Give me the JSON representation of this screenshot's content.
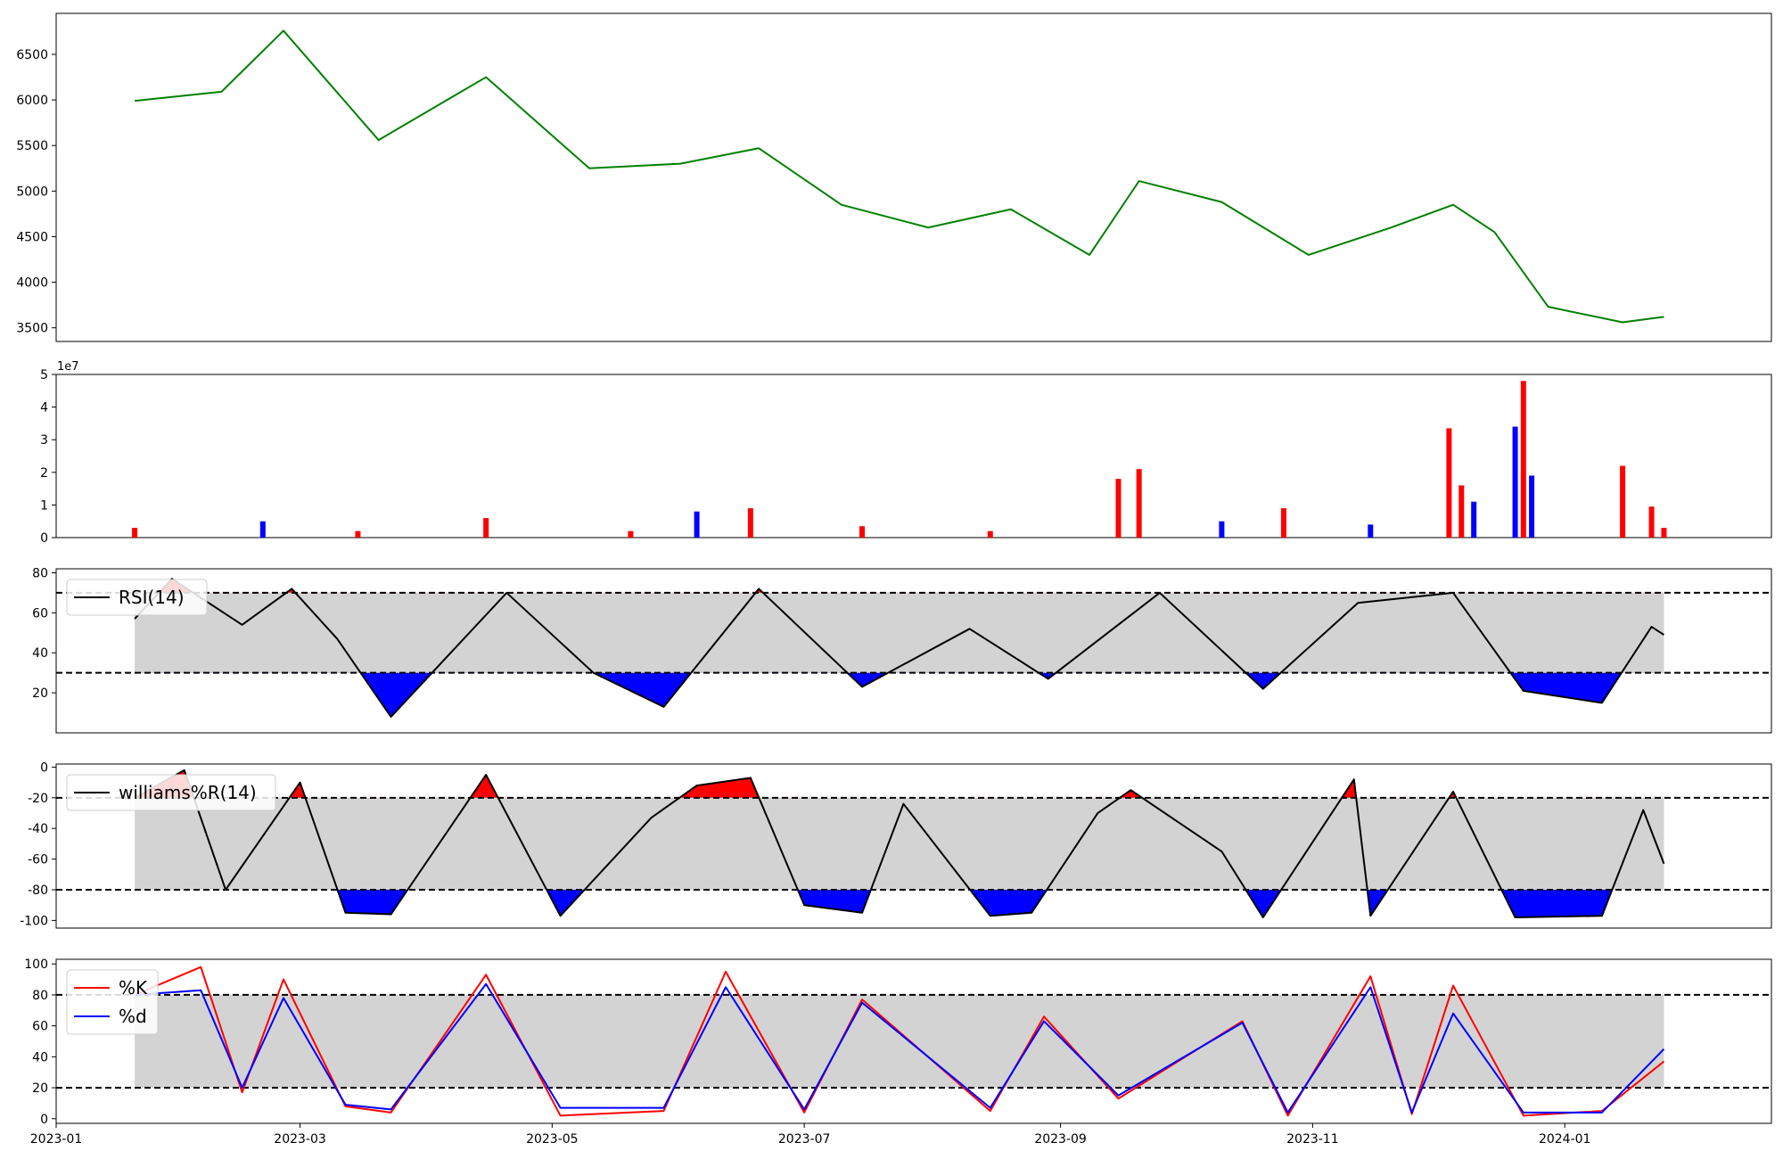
{
  "figure": {
    "x_ticks": [
      "2023-01",
      "2023-03",
      "2023-05",
      "2023-07",
      "2023-09",
      "2023-11",
      "2024-01"
    ],
    "x_tick_dates": [
      "2023-01-01",
      "2023-03-01",
      "2023-05-01",
      "2023-07-01",
      "2023-09-01",
      "2023-11-01",
      "2024-01-01"
    ],
    "x_range": [
      "2023-01-01",
      "2024-02-20"
    ],
    "colors": {
      "price": "#008000",
      "up": "#ff0000",
      "down": "#0000ff",
      "band": "#d3d3d3",
      "line": "#000000",
      "k": "#ff0000",
      "d": "#0000ff"
    }
  },
  "chart_data": [
    {
      "type": "line",
      "panel": "price",
      "title": "",
      "ylim": [
        3350,
        6950
      ],
      "yticks": [
        "3500",
        "4000",
        "4500",
        "5000",
        "5500",
        "6000",
        "6500"
      ],
      "x": [
        "2023-01-20",
        "2023-02-10",
        "2023-02-25",
        "2023-03-20",
        "2023-04-15",
        "2023-05-10",
        "2023-06-01",
        "2023-06-20",
        "2023-07-10",
        "2023-07-31",
        "2023-08-20",
        "2023-09-08",
        "2023-09-20",
        "2023-10-10",
        "2023-10-31",
        "2023-11-20",
        "2023-12-05",
        "2023-12-15",
        "2023-12-28",
        "2024-01-15",
        "2024-01-25"
      ],
      "series": [
        {
          "values": [
            5990,
            6090,
            6760,
            5560,
            6250,
            5250,
            5300,
            5470,
            4850,
            4600,
            4800,
            4300,
            5110,
            4880,
            4300,
            4600,
            4850,
            4550,
            3730,
            3560,
            3620
          ]
        }
      ]
    },
    {
      "type": "bar",
      "panel": "volume",
      "offset_label": "1e7",
      "ylim": [
        0,
        5
      ],
      "yticks": [
        "0",
        "1",
        "2",
        "3",
        "4",
        "5"
      ],
      "x": [
        "2023-01-20",
        "2023-02-20",
        "2023-03-15",
        "2023-04-15",
        "2023-05-20",
        "2023-06-05",
        "2023-06-18",
        "2023-07-15",
        "2023-08-15",
        "2023-09-15",
        "2023-09-20",
        "2023-10-10",
        "2023-10-25",
        "2023-11-15",
        "2023-12-04",
        "2023-12-07",
        "2023-12-10",
        "2023-12-20",
        "2023-12-22",
        "2023-12-24",
        "2024-01-15",
        "2024-01-22",
        "2024-01-25"
      ],
      "values": [
        0.3,
        0.5,
        0.2,
        0.6,
        0.2,
        0.8,
        0.9,
        0.35,
        0.2,
        1.8,
        2.1,
        0.5,
        0.9,
        0.4,
        3.35,
        1.6,
        1.1,
        3.4,
        4.8,
        1.9,
        2.2,
        0.95,
        0.3
      ],
      "up": [
        true,
        false,
        true,
        true,
        true,
        false,
        true,
        true,
        true,
        true,
        true,
        false,
        true,
        false,
        true,
        true,
        false,
        false,
        true,
        false,
        true,
        true,
        true
      ]
    },
    {
      "type": "line",
      "panel": "rsi",
      "legend": [
        "RSI(14)"
      ],
      "ylim": [
        0,
        82
      ],
      "yticks": [
        "20",
        "40",
        "60",
        "80"
      ],
      "thresholds": [
        30,
        70
      ],
      "x": [
        "2023-01-20",
        "2023-01-29",
        "2023-02-15",
        "2023-02-27",
        "2023-03-10",
        "2023-03-23",
        "2023-04-20",
        "2023-05-11",
        "2023-05-28",
        "2023-06-20",
        "2023-07-15",
        "2023-08-10",
        "2023-08-29",
        "2023-09-25",
        "2023-10-20",
        "2023-11-12",
        "2023-12-05",
        "2023-12-22",
        "2024-01-10",
        "2024-01-22",
        "2024-01-25"
      ],
      "series": [
        {
          "name": "RSI(14)",
          "values": [
            57,
            77,
            54,
            72,
            47,
            8,
            70,
            30,
            13,
            72,
            23,
            52,
            27,
            70,
            22,
            65,
            70,
            21,
            15,
            53,
            49
          ]
        }
      ]
    },
    {
      "type": "line",
      "panel": "williams",
      "legend": [
        "williams%R(14)"
      ],
      "ylim": [
        -105,
        2
      ],
      "yticks": [
        "0",
        "-20",
        "-40",
        "-60",
        "-80",
        "-100"
      ],
      "thresholds": [
        -80,
        -20
      ],
      "x": [
        "2023-01-20",
        "2023-02-01",
        "2023-02-11",
        "2023-03-01",
        "2023-03-12",
        "2023-03-23",
        "2023-04-15",
        "2023-05-03",
        "2023-05-25",
        "2023-06-05",
        "2023-06-18",
        "2023-07-01",
        "2023-07-15",
        "2023-07-25",
        "2023-08-15",
        "2023-08-25",
        "2023-09-10",
        "2023-09-18",
        "2023-10-10",
        "2023-10-20",
        "2023-11-11",
        "2023-11-15",
        "2023-12-05",
        "2023-12-20",
        "2024-01-10",
        "2024-01-20",
        "2024-01-25"
      ],
      "series": [
        {
          "name": "williams%R(14)",
          "values": [
            -20,
            -2,
            -80,
            -10,
            -95,
            -96,
            -5,
            -97,
            -33,
            -12,
            -7,
            -90,
            -95,
            -24,
            -97,
            -95,
            -30,
            -15,
            -55,
            -98,
            -8,
            -97,
            -16,
            -98,
            -97,
            -28,
            -63
          ]
        }
      ]
    },
    {
      "type": "line",
      "panel": "stochastic",
      "legend": [
        "%K",
        "%d"
      ],
      "ylim": [
        -3,
        103
      ],
      "yticks": [
        "0",
        "20",
        "40",
        "60",
        "80",
        "100"
      ],
      "thresholds": [
        20,
        80
      ],
      "x": [
        "2023-01-20",
        "2023-02-05",
        "2023-02-15",
        "2023-02-25",
        "2023-03-12",
        "2023-03-23",
        "2023-04-15",
        "2023-05-03",
        "2023-05-28",
        "2023-06-12",
        "2023-07-01",
        "2023-07-15",
        "2023-08-15",
        "2023-08-28",
        "2023-09-15",
        "2023-10-15",
        "2023-10-26",
        "2023-11-15",
        "2023-11-25",
        "2023-12-05",
        "2023-12-22",
        "2024-01-10",
        "2024-01-25"
      ],
      "series": [
        {
          "name": "%K",
          "values": [
            80,
            98,
            17,
            90,
            8,
            4,
            93,
            2,
            5,
            95,
            4,
            77,
            5,
            66,
            13,
            63,
            2,
            92,
            3,
            86,
            2,
            5,
            37
          ]
        },
        {
          "name": "%d",
          "values": [
            80,
            83,
            20,
            78,
            9,
            6,
            87,
            7,
            7,
            85,
            6,
            75,
            7,
            63,
            15,
            62,
            4,
            85,
            4,
            68,
            4,
            4,
            45
          ]
        }
      ]
    }
  ]
}
